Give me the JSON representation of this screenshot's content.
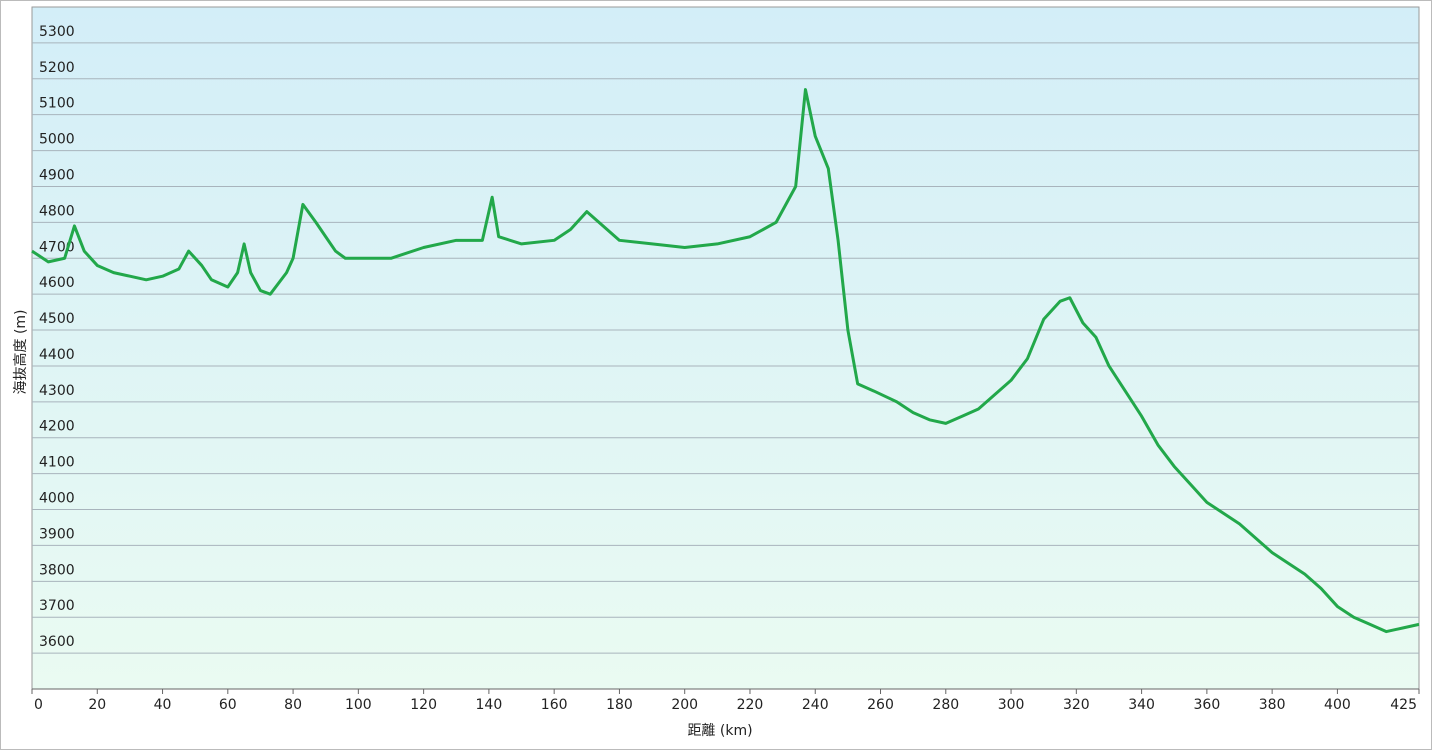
{
  "chart_data": {
    "type": "line",
    "x_label": "距離 (km)",
    "y_label": "海抜高度 (m)",
    "xlim": [
      0,
      425
    ],
    "xticks": [
      0,
      20,
      40,
      60,
      80,
      100,
      120,
      140,
      160,
      180,
      200,
      220,
      240,
      260,
      280,
      300,
      320,
      340,
      360,
      380,
      400,
      425
    ],
    "ylim": [
      3500,
      5400
    ],
    "yticks": [
      3600,
      3700,
      3800,
      3900,
      4000,
      4100,
      4200,
      4300,
      4400,
      4500,
      4600,
      4700,
      4800,
      4900,
      5000,
      5100,
      5200,
      5300
    ],
    "grid": true,
    "series": [
      {
        "name": "海抜高度",
        "color": "#22a84a",
        "x": [
          0,
          5,
          10,
          13,
          16,
          20,
          25,
          30,
          35,
          40,
          45,
          48,
          52,
          55,
          60,
          63,
          65,
          67,
          70,
          73,
          78,
          80,
          83,
          87,
          90,
          93,
          96,
          100,
          110,
          120,
          130,
          138,
          141,
          143,
          150,
          160,
          165,
          170,
          175,
          180,
          190,
          200,
          210,
          220,
          228,
          234,
          237,
          240,
          244,
          247,
          250,
          253,
          258,
          265,
          270,
          275,
          280,
          285,
          290,
          295,
          300,
          305,
          310,
          315,
          318,
          322,
          326,
          330,
          335,
          340,
          345,
          350,
          355,
          360,
          370,
          380,
          390,
          395,
          400,
          405,
          410,
          415,
          420,
          425
        ],
        "values": [
          4720,
          4690,
          4700,
          4790,
          4720,
          4680,
          4660,
          4650,
          4640,
          4650,
          4670,
          4720,
          4680,
          4640,
          4620,
          4660,
          4740,
          4660,
          4610,
          4600,
          4660,
          4700,
          4850,
          4800,
          4760,
          4720,
          4700,
          4700,
          4700,
          4730,
          4750,
          4750,
          4870,
          4760,
          4740,
          4750,
          4780,
          4830,
          4790,
          4750,
          4740,
          4730,
          4740,
          4760,
          4800,
          4900,
          5170,
          5040,
          4950,
          4750,
          4500,
          4350,
          4330,
          4300,
          4270,
          4250,
          4240,
          4260,
          4280,
          4320,
          4360,
          4420,
          4530,
          4580,
          4590,
          4520,
          4480,
          4400,
          4330,
          4260,
          4180,
          4120,
          4070,
          4020,
          3960,
          3880,
          3820,
          3780,
          3730,
          3700,
          3680,
          3660,
          3670,
          3680
        ]
      }
    ]
  }
}
